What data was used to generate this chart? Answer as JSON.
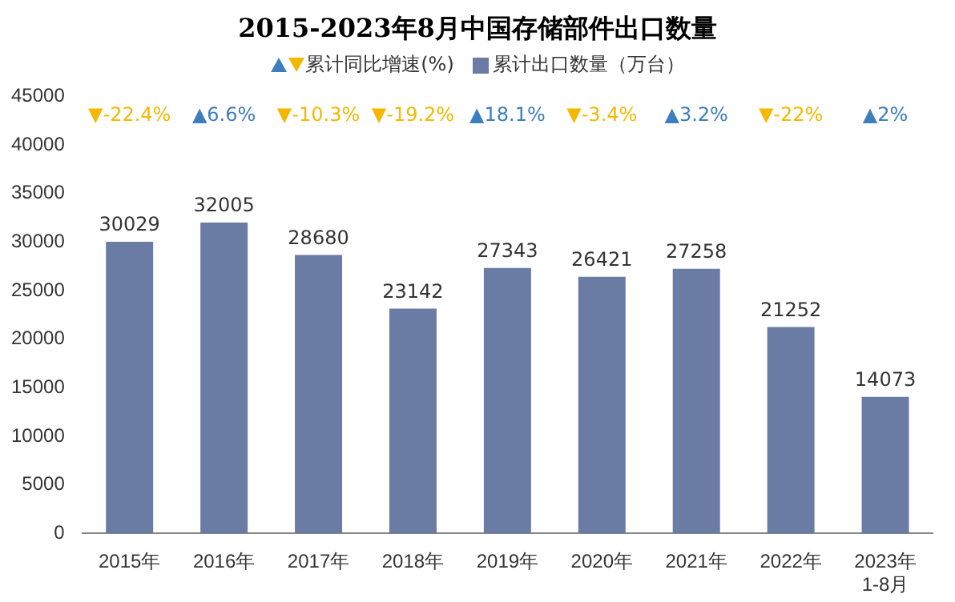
{
  "chart_data": {
    "type": "bar",
    "title": "2015-2023年8月中国存储部件出口数量",
    "categories": [
      "2015年",
      "2016年",
      "2017年",
      "2018年",
      "2019年",
      "2020年",
      "2021年",
      "2022年",
      "2023年\n1-8月"
    ],
    "series": [
      {
        "name": "累计出口数量（万台）",
        "color": "#6a7ca3",
        "values": [
          30029,
          32005,
          28680,
          23142,
          27343,
          26421,
          27258,
          21252,
          14073
        ]
      }
    ],
    "annotations": [
      "累计同比增速(%)",
      "▼-22.4%",
      "▲6.6%",
      "▼-10.3%",
      "▼-19.2%",
      "▲18.1%",
      "▼-3.4%",
      "▲3.2%",
      "▼-22%",
      "▲2%"
    ],
    "ylim": [
      0,
      45000
    ],
    "yticks": [
      0,
      5000,
      10000,
      15000,
      20000,
      25000,
      30000,
      35000,
      40000,
      45000
    ],
    "data_labels": true,
    "grid": false,
    "legend": "top"
  }
}
